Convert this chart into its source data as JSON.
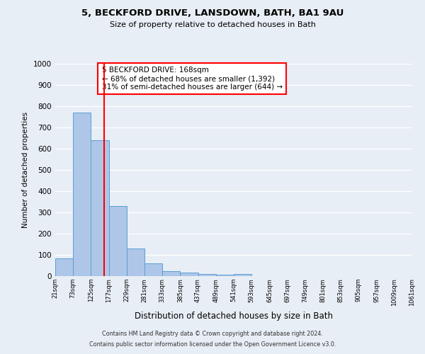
{
  "title1": "5, BECKFORD DRIVE, LANSDOWN, BATH, BA1 9AU",
  "title2": "Size of property relative to detached houses in Bath",
  "xlabel": "Distribution of detached houses by size in Bath",
  "ylabel": "Number of detached properties",
  "bin_labels": [
    "21sqm",
    "73sqm",
    "125sqm",
    "177sqm",
    "229sqm",
    "281sqm",
    "333sqm",
    "385sqm",
    "437sqm",
    "489sqm",
    "541sqm",
    "593sqm",
    "645sqm",
    "697sqm",
    "749sqm",
    "801sqm",
    "853sqm",
    "905sqm",
    "957sqm",
    "1009sqm",
    "1061sqm"
  ],
  "bar_heights": [
    85,
    770,
    640,
    330,
    130,
    60,
    25,
    18,
    10,
    7,
    10,
    0,
    0,
    0,
    0,
    0,
    0,
    0,
    0,
    0
  ],
  "bar_color": "#aec6e8",
  "bar_edge_color": "#5a9fd4",
  "red_line_x": 2.72,
  "annotation_text": "5 BECKFORD DRIVE: 168sqm\n← 68% of detached houses are smaller (1,392)\n31% of semi-detached houses are larger (644) →",
  "annotation_box_color": "white",
  "annotation_box_edge_color": "red",
  "ylim": [
    0,
    1000
  ],
  "yticks": [
    0,
    100,
    200,
    300,
    400,
    500,
    600,
    700,
    800,
    900,
    1000
  ],
  "footer1": "Contains HM Land Registry data © Crown copyright and database right 2024.",
  "footer2": "Contains public sector information licensed under the Open Government Licence v3.0.",
  "background_color": "#e8eef5",
  "grid_color": "white"
}
